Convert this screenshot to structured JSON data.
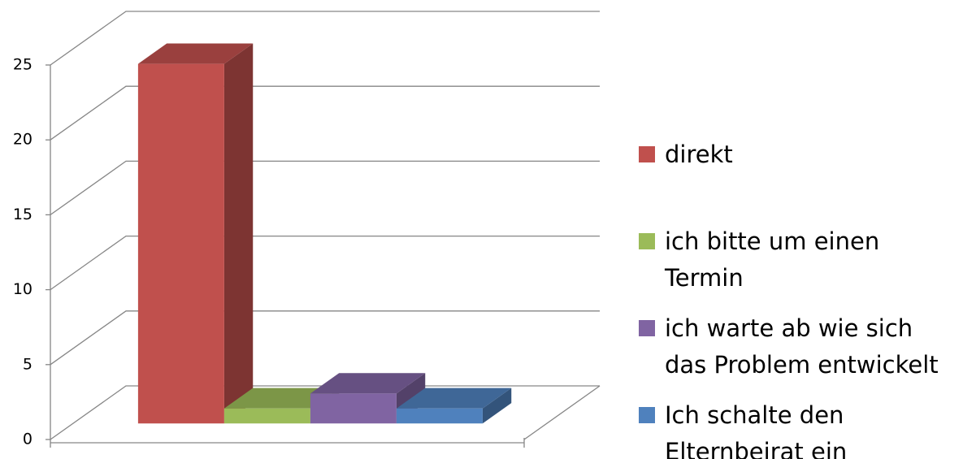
{
  "chart_data": {
    "type": "bar",
    "categories": [
      null
    ],
    "series": [
      {
        "name": "direkt",
        "color": "#c0504d",
        "values": [
          24
        ]
      },
      {
        "name": "ich bitte um einen Termin",
        "color": "#9bbb59",
        "values": [
          1
        ]
      },
      {
        "name": "ich warte ab wie sich das Problem entwickelt",
        "color": "#8064a2",
        "values": [
          2
        ]
      },
      {
        "name": "Ich schalte den Elternbeirat ein",
        "color": "#4f81bd",
        "values": [
          1
        ]
      }
    ],
    "ylim": [
      0,
      25
    ],
    "yticks": [
      0,
      5,
      10,
      15,
      20,
      25
    ],
    "grid": true,
    "legend": "right"
  }
}
